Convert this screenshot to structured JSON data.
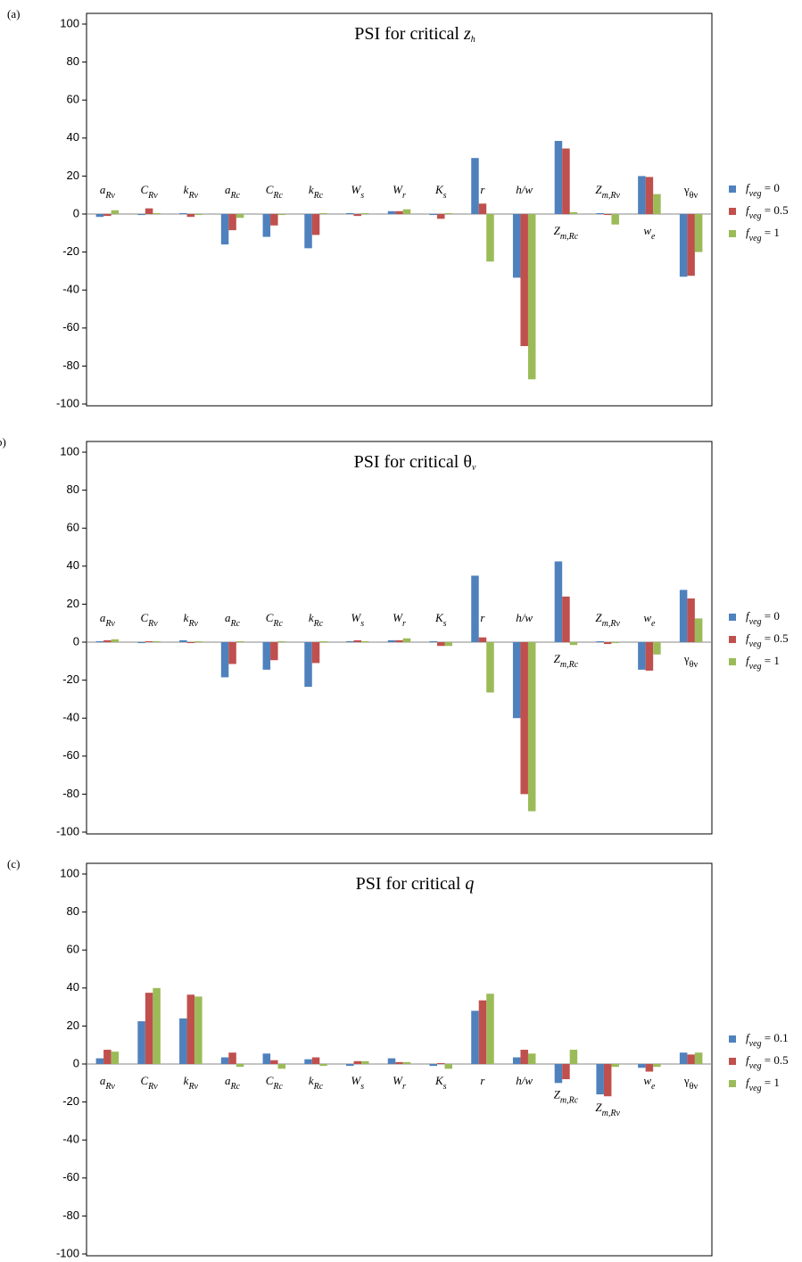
{
  "chart_data": [
    {
      "type": "bar",
      "panel_label": "(a)",
      "title": "PSI for critical zh",
      "categories": [
        "aRv",
        "CRv",
        "kRv",
        "aRc",
        "CRc",
        "kRc",
        "Ws",
        "Wr",
        "Ks",
        "r",
        "h/w",
        "Zm,Rc",
        "Zm,Rv",
        "we",
        "γθv"
      ],
      "series": [
        {
          "name": "fveg = 0",
          "color": "#4f81bd",
          "values": [
            -1.5,
            -0.5,
            0.5,
            -16,
            -12,
            -18,
            0.5,
            1.5,
            -0.5,
            29.5,
            -33.5,
            38.5,
            0.5,
            20,
            -33
          ]
        },
        {
          "name": "fveg = 0.5",
          "color": "#c0504d",
          "values": [
            -1,
            3,
            -1.5,
            -8.5,
            -6,
            -11,
            -1,
            1.5,
            -2.5,
            5.5,
            -69.5,
            34.5,
            -0.5,
            19.5,
            -32.5
          ]
        },
        {
          "name": "fveg = 1",
          "color": "#9bbb59",
          "values": [
            2,
            0.5,
            -0.5,
            -2,
            -0.5,
            0.5,
            0.5,
            2.5,
            0.5,
            -25,
            -87,
            1,
            -5.5,
            10.5,
            -20
          ]
        }
      ],
      "ylim": [
        -100,
        100
      ],
      "yticks": [
        -100,
        -80,
        -60,
        -40,
        -20,
        0,
        20,
        40,
        60,
        80,
        100
      ],
      "legend": "right"
    },
    {
      "type": "bar",
      "panel_label": "b)",
      "title": "PSI for critical θv",
      "categories": [
        "aRv",
        "CRv",
        "kRv",
        "aRc",
        "CRc",
        "kRc",
        "Ws",
        "Wr",
        "Ks",
        "r",
        "h/w",
        "Zm,Rc",
        "Zm,Rv",
        "we",
        "γθv"
      ],
      "series": [
        {
          "name": "fveg = 0",
          "color": "#4f81bd",
          "values": [
            0.5,
            -0.5,
            1,
            -18.5,
            -14.5,
            -23.5,
            0.5,
            1,
            0.5,
            35,
            -40,
            42.5,
            0.5,
            -14.5,
            27.5
          ]
        },
        {
          "name": "fveg = 0.5",
          "color": "#c0504d",
          "values": [
            1,
            0.5,
            -0.5,
            -11.5,
            -9.5,
            -11,
            1,
            1,
            -2,
            2.5,
            -80,
            24,
            -1,
            -15,
            23
          ]
        },
        {
          "name": "fveg = 1",
          "color": "#9bbb59",
          "values": [
            1.5,
            0.5,
            0.5,
            0.5,
            0.5,
            0.5,
            0.5,
            2,
            -2,
            -26.5,
            -89,
            -1.5,
            -0.5,
            -6.5,
            12.5
          ]
        }
      ],
      "ylim": [
        -100,
        100
      ],
      "yticks": [
        -100,
        -80,
        -60,
        -40,
        -20,
        0,
        20,
        40,
        60,
        80,
        100
      ],
      "legend": "right"
    },
    {
      "type": "bar",
      "panel_label": "(c)",
      "title": "PSI for critical q",
      "categories": [
        "aRv",
        "CRv",
        "kRv",
        "aRc",
        "CRc",
        "kRc",
        "Ws",
        "Wr",
        "Ks",
        "r",
        "h/w",
        "Zm,Rc",
        "Zm,Rv",
        "we",
        "γθv"
      ],
      "series": [
        {
          "name": "fveg = 0.1",
          "color": "#4f81bd",
          "values": [
            3,
            22.5,
            24,
            3.5,
            5.5,
            2.5,
            -1,
            3,
            -1,
            28,
            3.5,
            -10,
            -16,
            -2,
            6
          ]
        },
        {
          "name": "fveg = 0.5",
          "color": "#c0504d",
          "values": [
            7.5,
            37.5,
            36.5,
            6,
            2,
            3.5,
            1.5,
            1,
            0.5,
            33.5,
            7.5,
            -8,
            -17,
            -4,
            5
          ]
        },
        {
          "name": "fveg = 1",
          "color": "#9bbb59",
          "values": [
            6.5,
            40,
            35.5,
            -1.5,
            -2.5,
            -1,
            1.5,
            1,
            -2.5,
            37,
            5.5,
            7.5,
            -1.5,
            -1.5,
            6
          ]
        }
      ],
      "ylim": [
        -100,
        100
      ],
      "yticks": [
        -100,
        -80,
        -60,
        -40,
        -20,
        0,
        20,
        40,
        60,
        80,
        100
      ],
      "legend": "right"
    }
  ]
}
